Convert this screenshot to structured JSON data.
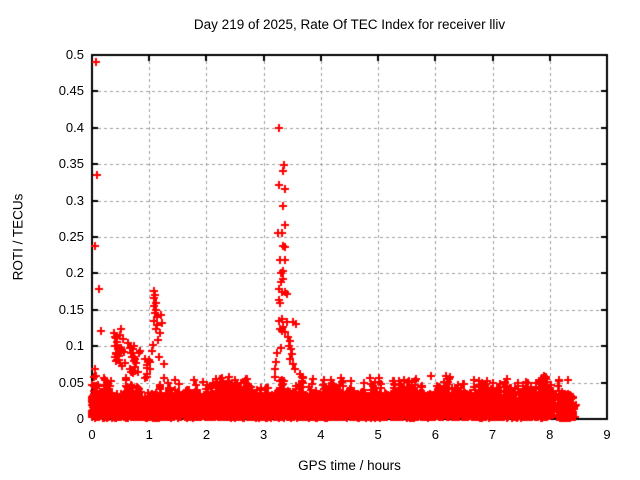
{
  "chart_data": {
    "type": "scatter",
    "title": "Day 219 of 2025, Rate Of TEC Index for receiver lliv",
    "xlabel": "GPS time / hours",
    "ylabel": "ROTI / TECUs",
    "xlim": [
      0,
      9
    ],
    "ylim": [
      0,
      0.5
    ],
    "xticks": {
      "values": [
        0,
        1,
        2,
        3,
        4,
        5,
        6,
        7,
        8,
        9
      ],
      "labels": [
        "0",
        "1",
        "2",
        "3",
        "4",
        "5",
        "6",
        "7",
        "8",
        "9"
      ]
    },
    "yticks": {
      "values": [
        0,
        0.05,
        0.1,
        0.15,
        0.2,
        0.25,
        0.3,
        0.35,
        0.4,
        0.45,
        0.5
      ],
      "labels": [
        "0",
        "0.05",
        "0.1",
        "0.15",
        "0.2",
        "0.25",
        "0.3",
        "0.35",
        "0.4",
        "0.45",
        "0.5"
      ]
    },
    "grid": {
      "show": true,
      "color": "#a0a0a0",
      "dash": [
        3,
        3
      ]
    },
    "legend": "none",
    "background": "#ffffff",
    "text_color": "#000000",
    "frame_color": "#000000",
    "marker": {
      "shape": "plus",
      "color": "#ff0000",
      "half_arm": 4,
      "line_width": 2
    },
    "seed": 219,
    "series": [
      {
        "name": "ROTI",
        "outliers": [
          [
            0.07,
            0.49
          ],
          [
            0.08,
            0.335
          ],
          [
            0.05,
            0.237
          ],
          [
            0.13,
            0.178
          ],
          [
            0.15,
            0.121
          ],
          [
            0.06,
            0.068
          ],
          [
            0.04,
            0.058
          ],
          [
            0.38,
            0.118
          ],
          [
            0.41,
            0.112
          ],
          [
            0.43,
            0.106
          ],
          [
            0.4,
            0.1
          ],
          [
            0.45,
            0.096
          ],
          [
            0.42,
            0.09
          ],
          [
            0.47,
            0.086
          ],
          [
            0.44,
            0.081
          ],
          [
            0.49,
            0.077
          ],
          [
            0.52,
            0.073
          ],
          [
            0.63,
            0.105
          ],
          [
            0.66,
            0.098
          ],
          [
            0.68,
            0.091
          ],
          [
            0.7,
            0.085
          ],
          [
            0.73,
            0.079
          ],
          [
            0.76,
            0.071
          ],
          [
            0.8,
            0.064
          ],
          [
            0.71,
            0.096
          ],
          [
            1.08,
            0.176
          ],
          [
            1.1,
            0.171
          ],
          [
            1.09,
            0.166
          ],
          [
            1.11,
            0.16
          ],
          [
            1.08,
            0.155
          ],
          [
            1.12,
            0.15
          ],
          [
            1.1,
            0.146
          ],
          [
            1.13,
            0.14
          ],
          [
            1.09,
            0.135
          ],
          [
            1.14,
            0.129
          ],
          [
            1.12,
            0.124
          ],
          [
            1.21,
            0.143
          ],
          [
            1.23,
            0.132
          ],
          [
            1.19,
            0.118
          ],
          [
            1.16,
            0.109
          ],
          [
            1.06,
            0.102
          ],
          [
            1.04,
            0.093
          ],
          [
            1.17,
            0.085
          ],
          [
            1.25,
            0.076
          ],
          [
            1.02,
            0.068
          ],
          [
            3.27,
            0.4
          ],
          [
            3.35,
            0.349
          ],
          [
            3.34,
            0.34
          ],
          [
            3.27,
            0.322
          ],
          [
            3.37,
            0.316
          ],
          [
            3.34,
            0.292
          ],
          [
            3.37,
            0.267
          ],
          [
            3.32,
            0.256
          ],
          [
            3.25,
            0.255
          ],
          [
            3.34,
            0.237
          ],
          [
            3.37,
            0.236
          ],
          [
            3.29,
            0.219
          ],
          [
            3.38,
            0.218
          ],
          [
            3.34,
            0.203
          ],
          [
            3.3,
            0.201
          ],
          [
            3.33,
            0.192
          ],
          [
            3.3,
            0.188
          ],
          [
            3.27,
            0.178
          ],
          [
            3.32,
            0.175
          ],
          [
            3.38,
            0.174
          ],
          [
            3.41,
            0.172
          ],
          [
            3.27,
            0.164
          ],
          [
            3.29,
            0.16
          ],
          [
            3.32,
            0.137
          ],
          [
            3.27,
            0.134
          ],
          [
            3.41,
            0.133
          ],
          [
            3.52,
            0.133
          ],
          [
            3.57,
            0.13
          ],
          [
            3.34,
            0.127
          ],
          [
            3.29,
            0.123
          ],
          [
            3.32,
            0.121
          ],
          [
            3.37,
            0.119
          ],
          [
            3.43,
            0.112
          ],
          [
            3.46,
            0.107
          ],
          [
            3.45,
            0.1
          ],
          [
            3.48,
            0.096
          ],
          [
            3.5,
            0.089
          ],
          [
            3.46,
            0.082
          ],
          [
            3.51,
            0.075
          ],
          [
            3.55,
            0.068
          ],
          [
            3.64,
            0.062
          ],
          [
            3.67,
            0.058
          ],
          [
            3.3,
            0.098
          ],
          [
            3.24,
            0.09
          ],
          [
            3.22,
            0.078
          ],
          [
            3.2,
            0.068
          ],
          [
            3.86,
            0.055
          ]
        ],
        "clusters": [
          {
            "x0": 0.4,
            "x1": 0.58,
            "y0": 0.07,
            "y1": 0.125,
            "n": 14
          },
          {
            "x0": 0.61,
            "x1": 0.84,
            "y0": 0.058,
            "y1": 0.108,
            "n": 12
          },
          {
            "x0": 0.88,
            "x1": 1.04,
            "y0": 0.048,
            "y1": 0.085,
            "n": 8
          },
          {
            "x0": 0.0,
            "x1": 0.12,
            "y0": 0.03,
            "y1": 0.052,
            "n": 10
          },
          {
            "x0": 2.1,
            "x1": 2.38,
            "y0": 0.038,
            "y1": 0.056,
            "n": 9
          },
          {
            "x0": 2.55,
            "x1": 2.78,
            "y0": 0.036,
            "y1": 0.048,
            "n": 6
          },
          {
            "x0": 3.6,
            "x1": 3.92,
            "y0": 0.04,
            "y1": 0.058,
            "n": 8
          },
          {
            "x0": 4.1,
            "x1": 4.42,
            "y0": 0.038,
            "y1": 0.056,
            "n": 8
          },
          {
            "x0": 5.4,
            "x1": 5.62,
            "y0": 0.038,
            "y1": 0.058,
            "n": 7
          },
          {
            "x0": 6.15,
            "x1": 6.52,
            "y0": 0.038,
            "y1": 0.062,
            "n": 9
          },
          {
            "x0": 6.65,
            "x1": 6.82,
            "y0": 0.038,
            "y1": 0.055,
            "n": 5
          },
          {
            "x0": 7.5,
            "x1": 7.88,
            "y0": 0.036,
            "y1": 0.052,
            "n": 9
          },
          {
            "x0": 8.12,
            "x1": 8.32,
            "y0": 0.036,
            "y1": 0.055,
            "n": 6
          }
        ],
        "dense_band": {
          "x_start": 0.0,
          "x_end": 8.06,
          "n_base": 3800,
          "y_floor": 0.002,
          "y_core": 0.03,
          "n_bursts": 340,
          "burst_min": 0.028,
          "burst_max": 0.058,
          "tail": {
            "x_start": 8.1,
            "x_end": 8.47,
            "center": 8.285,
            "n": 430,
            "y_max": 0.033
          }
        }
      }
    ]
  }
}
